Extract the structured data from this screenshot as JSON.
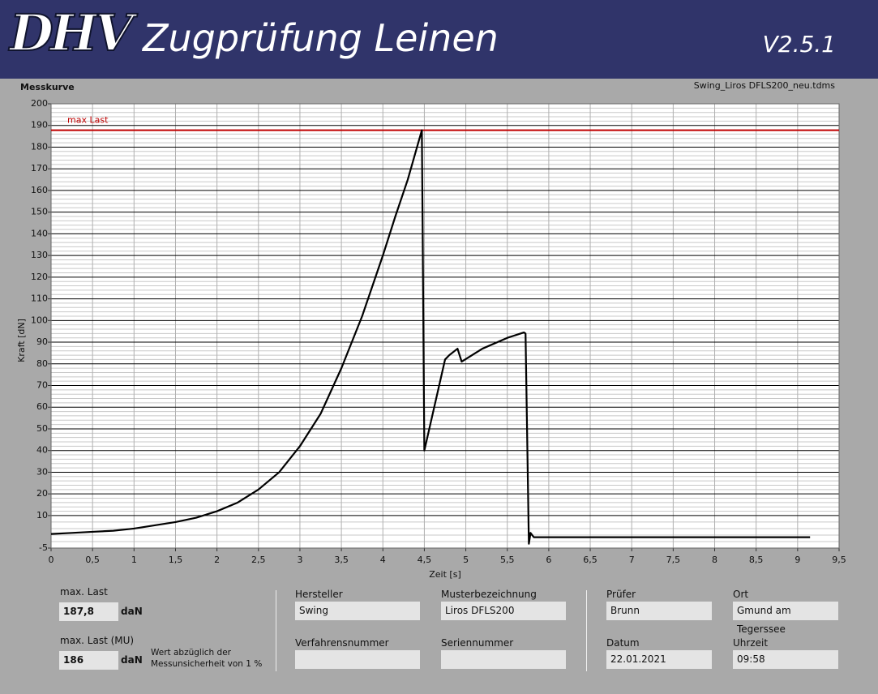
{
  "header": {
    "logo": "DHV",
    "title": "Zugprüfung Leinen",
    "version": "V2.5.1"
  },
  "chart_data": {
    "type": "line",
    "title": "Messkurve",
    "subtitle": "Swing_Liros DFLS200_neu.tdms",
    "x_label": "Zeit [s]",
    "y_label": "Kraft [dN]",
    "color": "#000000",
    "x": [
      0,
      0.25,
      0.5,
      0.75,
      1,
      1.25,
      1.5,
      1.75,
      2,
      2.25,
      2.5,
      2.75,
      3,
      3.25,
      3.5,
      3.75,
      4,
      4.15,
      4.3,
      4.47,
      4.5,
      4.75,
      4.8,
      4.9,
      4.95,
      5.2,
      5.5,
      5.7,
      5.72,
      5.76,
      5.78,
      5.82,
      6,
      7,
      8,
      9.15
    ],
    "values": [
      1.5,
      2,
      2.5,
      3,
      4,
      5.5,
      7,
      9,
      12,
      16,
      22,
      30,
      42,
      57,
      78,
      102,
      130,
      148,
      165,
      187.8,
      40,
      82,
      84,
      87,
      81,
      87,
      92,
      94.5,
      94,
      -3,
      2,
      0,
      0,
      0,
      0,
      0
    ],
    "xlim": [
      0,
      9.5
    ],
    "xticks": [
      0,
      {
        "value": 0.5,
        "label": "0,5"
      },
      1,
      {
        "value": 1.5,
        "label": "1,5"
      },
      2,
      {
        "value": 2.5,
        "label": "2,5"
      },
      3,
      {
        "value": 3.5,
        "label": "3,5"
      },
      4,
      {
        "value": 4.5,
        "label": "4,5"
      },
      5,
      {
        "value": 5.5,
        "label": "5,5"
      },
      6,
      {
        "value": 6.5,
        "label": "6,5"
      },
      7,
      {
        "value": 7.5,
        "label": "7,5"
      },
      8,
      {
        "value": 8.5,
        "label": "8,5"
      },
      9,
      {
        "value": 9.5,
        "label": "9,5"
      }
    ],
    "ylim": [
      -5,
      200
    ],
    "yticks": [
      -5,
      10,
      20,
      30,
      40,
      50,
      60,
      70,
      80,
      90,
      100,
      110,
      120,
      130,
      140,
      150,
      160,
      170,
      180,
      190,
      200
    ],
    "grid": true,
    "annotations": [
      {
        "text": "max Last",
        "y": 187.8,
        "color": "#c00000"
      }
    ]
  },
  "results": {
    "max_last": {
      "label": "max. Last",
      "value": "187,8",
      "unit": "daN"
    },
    "max_last_mu": {
      "label": "max. Last (MU)",
      "value": "186",
      "unit": "daN",
      "note": "Wert abzüglich der Messunsicherheit von 1 %"
    }
  },
  "fields": [
    {
      "label": "Hersteller",
      "value": "Swing"
    },
    {
      "label": "Musterbezeichnung",
      "value": "Liros DFLS200"
    },
    {
      "label": "Verfahrensnummer"
    },
    {
      "label": "Seriennummer"
    },
    {
      "label": "Prüfer",
      "value": "Brunn"
    },
    {
      "label": "Ort",
      "value": "Gmund am Tegerssee"
    },
    {
      "label": "Datum",
      "value": "22.01.2021"
    },
    {
      "label": "Uhrzeit",
      "value": "09:58"
    }
  ]
}
